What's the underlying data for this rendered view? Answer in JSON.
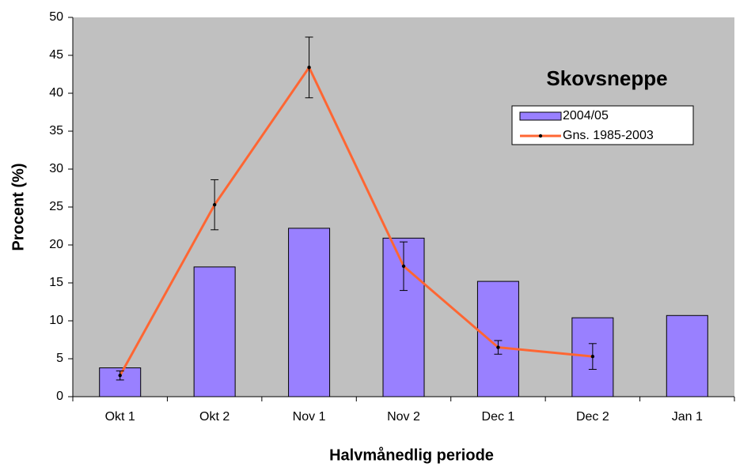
{
  "chart_data": {
    "type": "bar",
    "title": "Skovsneppe",
    "x_label": "Halvmånedlig periode",
    "y_label": "Procent (%)",
    "categories": [
      "Okt 1",
      "Okt 2",
      "Nov 1",
      "Nov 2",
      "Dec 1",
      "Dec 2",
      "Jan 1"
    ],
    "series": [
      {
        "name": "2004/05",
        "type": "bar",
        "color": "#9980ff",
        "values": [
          3.8,
          17.1,
          22.2,
          20.9,
          15.2,
          10.4,
          10.7
        ]
      },
      {
        "name": "Gns. 1985-2003",
        "type": "line",
        "color": "#ff6633",
        "values": [
          2.8,
          25.3,
          43.4,
          17.2,
          6.5,
          5.3,
          null
        ],
        "errors": [
          0.6,
          3.3,
          4.0,
          3.2,
          0.9,
          1.7,
          null
        ]
      }
    ],
    "ylim": [
      0,
      50
    ],
    "yticks": [
      0,
      5,
      10,
      15,
      20,
      25,
      30,
      35,
      40,
      45,
      50
    ],
    "grid": false,
    "legend": "upper right",
    "background": "#c0c0c0"
  }
}
